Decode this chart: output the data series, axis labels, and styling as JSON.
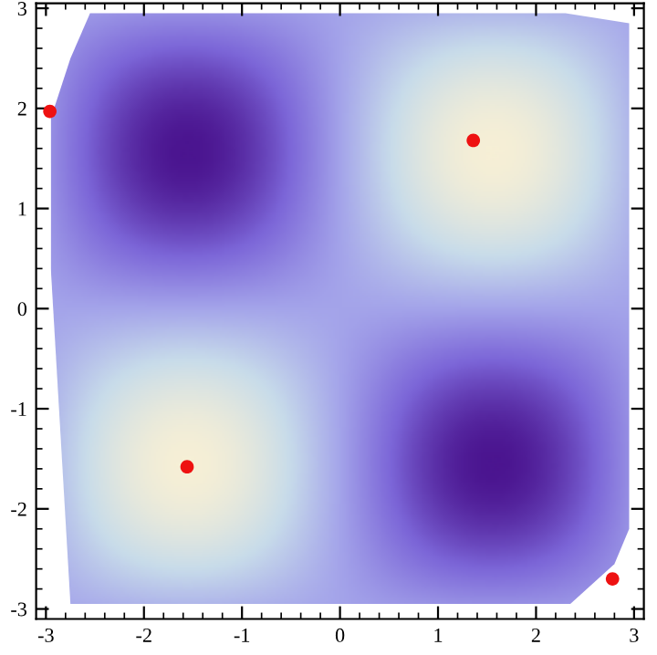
{
  "chart_data": {
    "type": "scatter",
    "x": [
      -2.96,
      1.36,
      -1.56,
      2.78
    ],
    "series": [
      {
        "color": "#ee1111",
        "values": [
          1.97,
          1.68,
          -1.58,
          -2.7
        ]
      }
    ],
    "marker": "circle",
    "xlim": [
      -3.1,
      3.1
    ],
    "ylim": [
      -3.1,
      3.05
    ],
    "xticks": [
      -3,
      -2,
      -1,
      0,
      1,
      2,
      3
    ],
    "yticks": [
      -3,
      -2,
      -1,
      0,
      1,
      2,
      3
    ],
    "grid": false,
    "legend": false
  }
}
